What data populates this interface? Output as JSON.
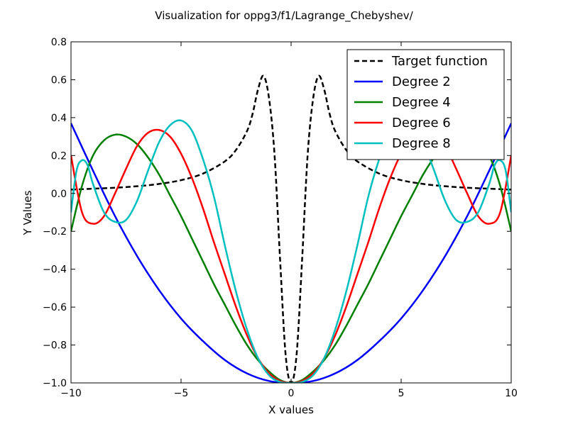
{
  "chart_data": {
    "type": "line",
    "title": "Visualization for oppg3/f1/Lagrange_Chebyshev/",
    "xlabel": "X values",
    "ylabel": "Y Values",
    "xlim": [
      -10,
      10
    ],
    "ylim": [
      -1.0,
      0.8
    ],
    "xticks": [
      -10,
      -5,
      0,
      5,
      10
    ],
    "xtick_labels": [
      "−10",
      "−5",
      "0",
      "5",
      "10"
    ],
    "yticks": [
      -1.0,
      -0.8,
      -0.6,
      -0.4,
      -0.2,
      0.0,
      0.2,
      0.4,
      0.6,
      0.8
    ],
    "ytick_labels": [
      "−1.0",
      "−0.8",
      "−0.6",
      "−0.4",
      "−0.2",
      "0.0",
      "0.2",
      "0.4",
      "0.6",
      "0.8"
    ],
    "grid": false,
    "legend_position": "top-right",
    "series": [
      {
        "name": "Target function",
        "color": "#000000",
        "dash": "dashed",
        "x": [
          -10,
          -9,
          -8,
          -7,
          -6,
          -5,
          -4,
          -3,
          -2.5,
          -2,
          -1.75,
          -1.5,
          -1.25,
          -1,
          -0.75,
          -0.5,
          -0.25,
          0,
          0.25,
          0.5,
          0.75,
          1,
          1.25,
          1.5,
          1.75,
          2,
          2.5,
          3,
          4,
          5,
          6,
          7,
          8,
          9,
          10
        ],
        "y": [
          0.02,
          0.025,
          0.03,
          0.038,
          0.05,
          0.07,
          0.105,
          0.17,
          0.23,
          0.33,
          0.42,
          0.55,
          0.62,
          0.5,
          0.2,
          -0.35,
          -0.85,
          -1.0,
          -0.85,
          -0.35,
          0.2,
          0.5,
          0.62,
          0.55,
          0.42,
          0.33,
          0.23,
          0.17,
          0.105,
          0.07,
          0.05,
          0.038,
          0.03,
          0.025,
          0.02
        ]
      },
      {
        "name": "Degree 2",
        "color": "#0000ff",
        "dash": "solid",
        "x": [
          -10,
          -9,
          -8,
          -7,
          -6,
          -5,
          -4,
          -3,
          -2,
          -1,
          0,
          1,
          2,
          3,
          4,
          5,
          6,
          7,
          8,
          9,
          10
        ],
        "y": [
          0.37,
          0.12,
          -0.12,
          -0.33,
          -0.51,
          -0.66,
          -0.78,
          -0.88,
          -0.95,
          -0.99,
          -1.0,
          -0.99,
          -0.95,
          -0.88,
          -0.78,
          -0.66,
          -0.51,
          -0.33,
          -0.12,
          0.12,
          0.37
        ]
      },
      {
        "name": "Degree 4",
        "color": "#008000",
        "dash": "solid",
        "x": [
          -10,
          -9.5,
          -9,
          -8.5,
          -8,
          -7.5,
          -7,
          -6.5,
          -6,
          -5.5,
          -5,
          -4.5,
          -4,
          -3.5,
          -3,
          -2.5,
          -2,
          -1.5,
          -1,
          -0.5,
          0,
          0.5,
          1,
          1.5,
          2,
          2.5,
          3,
          3.5,
          4,
          4.5,
          5,
          5.5,
          6,
          6.5,
          7,
          7.5,
          8,
          8.5,
          9,
          9.5,
          10
        ],
        "y": [
          -0.2,
          0.04,
          0.2,
          0.28,
          0.31,
          0.3,
          0.26,
          0.19,
          0.1,
          -0.01,
          -0.12,
          -0.24,
          -0.36,
          -0.48,
          -0.59,
          -0.7,
          -0.8,
          -0.88,
          -0.94,
          -0.985,
          -1.0,
          -0.985,
          -0.94,
          -0.88,
          -0.8,
          -0.7,
          -0.59,
          -0.48,
          -0.36,
          -0.24,
          -0.12,
          -0.01,
          0.1,
          0.19,
          0.26,
          0.3,
          0.31,
          0.28,
          0.2,
          0.04,
          -0.2
        ]
      },
      {
        "name": "Degree 6",
        "color": "#ff0000",
        "dash": "solid",
        "x": [
          -10,
          -9.5,
          -9,
          -8.5,
          -8,
          -7.5,
          -7,
          -6.5,
          -6,
          -5.5,
          -5,
          -4.5,
          -4,
          -3.5,
          -3,
          -2.5,
          -2,
          -1.5,
          -1,
          -0.5,
          0,
          0.5,
          1,
          1.5,
          2,
          2.5,
          3,
          3.5,
          4,
          4.5,
          5,
          5.5,
          6,
          6.5,
          7,
          7.5,
          8,
          8.5,
          9,
          9.5,
          10
        ],
        "y": [
          0.2,
          -0.1,
          -0.16,
          -0.12,
          0.0,
          0.13,
          0.25,
          0.32,
          0.335,
          0.3,
          0.21,
          0.08,
          -0.08,
          -0.26,
          -0.43,
          -0.6,
          -0.75,
          -0.87,
          -0.95,
          -0.99,
          -1.0,
          -0.99,
          -0.95,
          -0.87,
          -0.75,
          -0.6,
          -0.43,
          -0.26,
          -0.08,
          0.08,
          0.21,
          0.3,
          0.335,
          0.32,
          0.25,
          0.13,
          0.0,
          -0.12,
          -0.16,
          -0.1,
          0.2
        ]
      },
      {
        "name": "Degree 8",
        "color": "#00bfbf",
        "dash": "solid",
        "x": [
          -10,
          -9.75,
          -9.5,
          -9.25,
          -9,
          -8.5,
          -8,
          -7.5,
          -7,
          -6.5,
          -6,
          -5.5,
          -5,
          -4.5,
          -4,
          -3.5,
          -3,
          -2.5,
          -2,
          -1.5,
          -1,
          -0.5,
          0,
          0.5,
          1,
          1.5,
          2,
          2.5,
          3,
          3.5,
          4,
          4.5,
          5,
          5.5,
          6,
          6.5,
          7,
          7.5,
          8,
          8.5,
          9,
          9.25,
          9.5,
          9.75,
          10
        ],
        "y": [
          -0.1,
          0.12,
          0.175,
          0.15,
          0.05,
          -0.1,
          -0.15,
          -0.14,
          -0.04,
          0.12,
          0.27,
          0.36,
          0.385,
          0.33,
          0.18,
          -0.02,
          -0.28,
          -0.52,
          -0.72,
          -0.87,
          -0.96,
          -0.995,
          -1.0,
          -0.995,
          -0.96,
          -0.87,
          -0.72,
          -0.52,
          -0.28,
          -0.02,
          0.18,
          0.33,
          0.385,
          0.36,
          0.27,
          0.12,
          -0.04,
          -0.14,
          -0.15,
          -0.1,
          0.05,
          0.15,
          0.175,
          0.12,
          -0.1
        ]
      }
    ]
  }
}
